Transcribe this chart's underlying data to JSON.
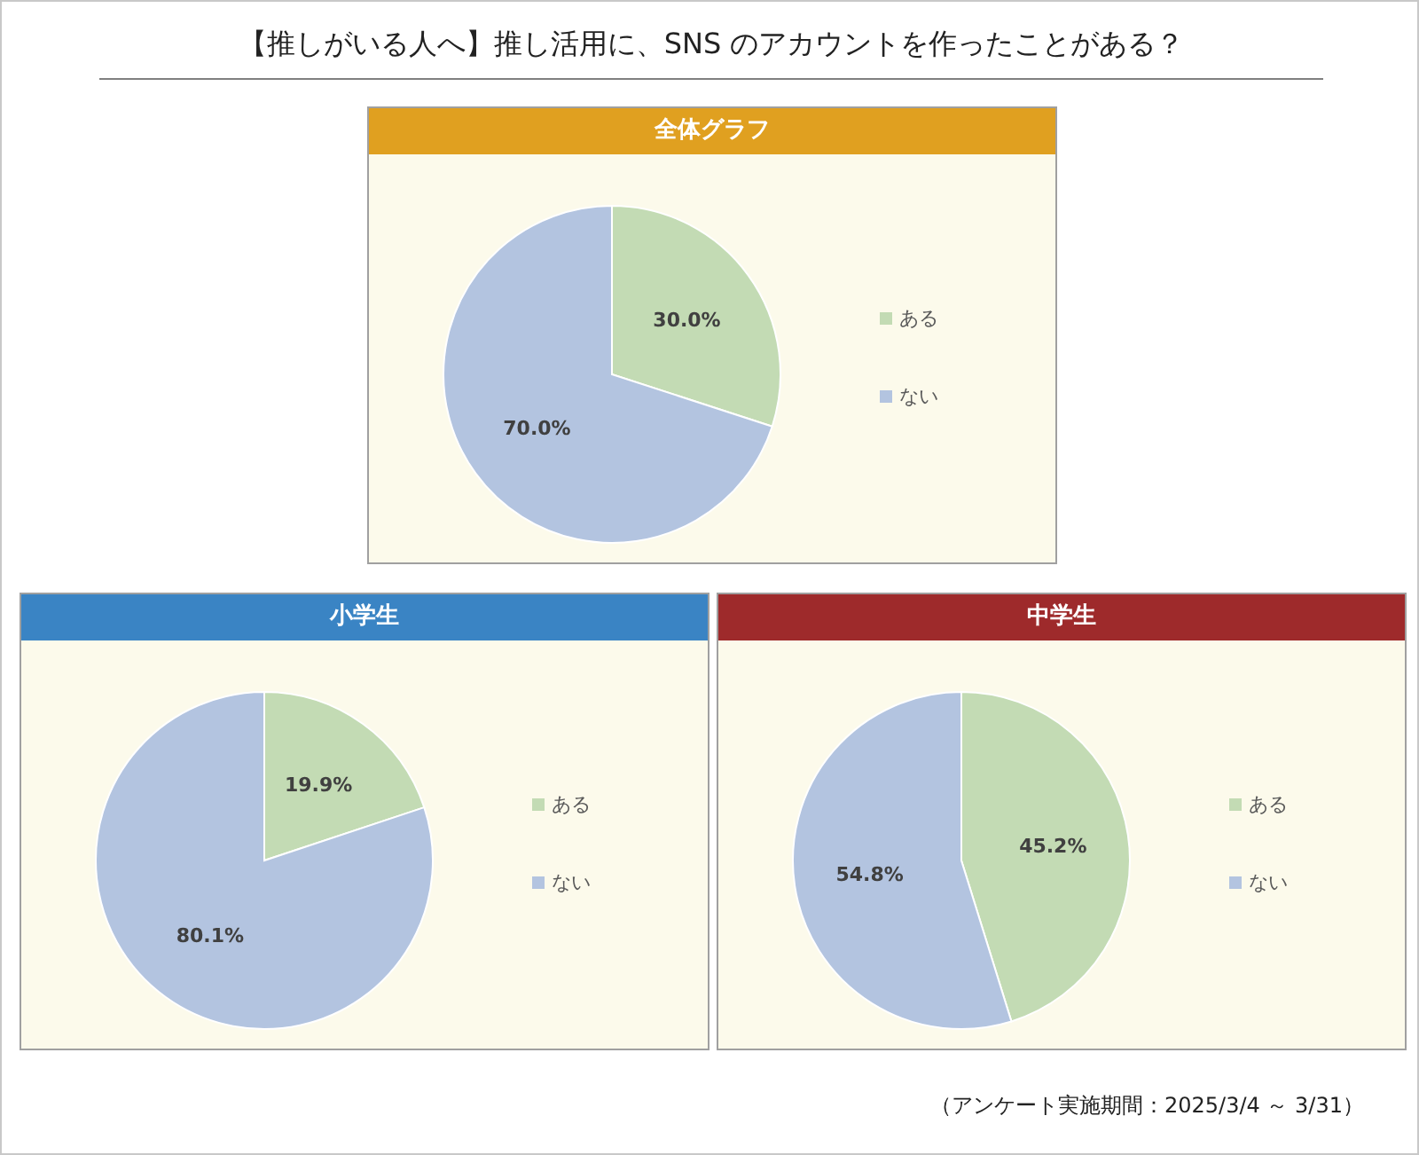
{
  "chart_data": [
    {
      "type": "other",
      "title": "【推しがいる人へ】推し活用に、SNS のアカウントを作ったことがある？",
      "annotations": [
        "（アンケート実施期間：2025/3/4 ～ 3/31）"
      ]
    },
    {
      "type": "pie",
      "title": "全体グラフ",
      "categories": [
        "ある",
        "ない"
      ],
      "values": [
        30.0,
        70.0
      ],
      "value_labels": [
        "30.0%",
        "70.0%"
      ],
      "colors": [
        "#c3dbb4",
        "#b3c4e0"
      ],
      "legend": "right"
    },
    {
      "type": "pie",
      "title": "小学生",
      "categories": [
        "ある",
        "ない"
      ],
      "values": [
        19.9,
        80.1
      ],
      "value_labels": [
        "19.9%",
        "80.1%"
      ],
      "colors": [
        "#c3dbb4",
        "#b3c4e0"
      ],
      "legend": "right"
    },
    {
      "type": "pie",
      "title": "中学生",
      "categories": [
        "ある",
        "ない"
      ],
      "values": [
        45.2,
        54.8
      ],
      "value_labels": [
        "45.2%",
        "54.8%"
      ],
      "colors": [
        "#c3dbb4",
        "#b3c4e0"
      ],
      "legend": "right"
    }
  ]
}
